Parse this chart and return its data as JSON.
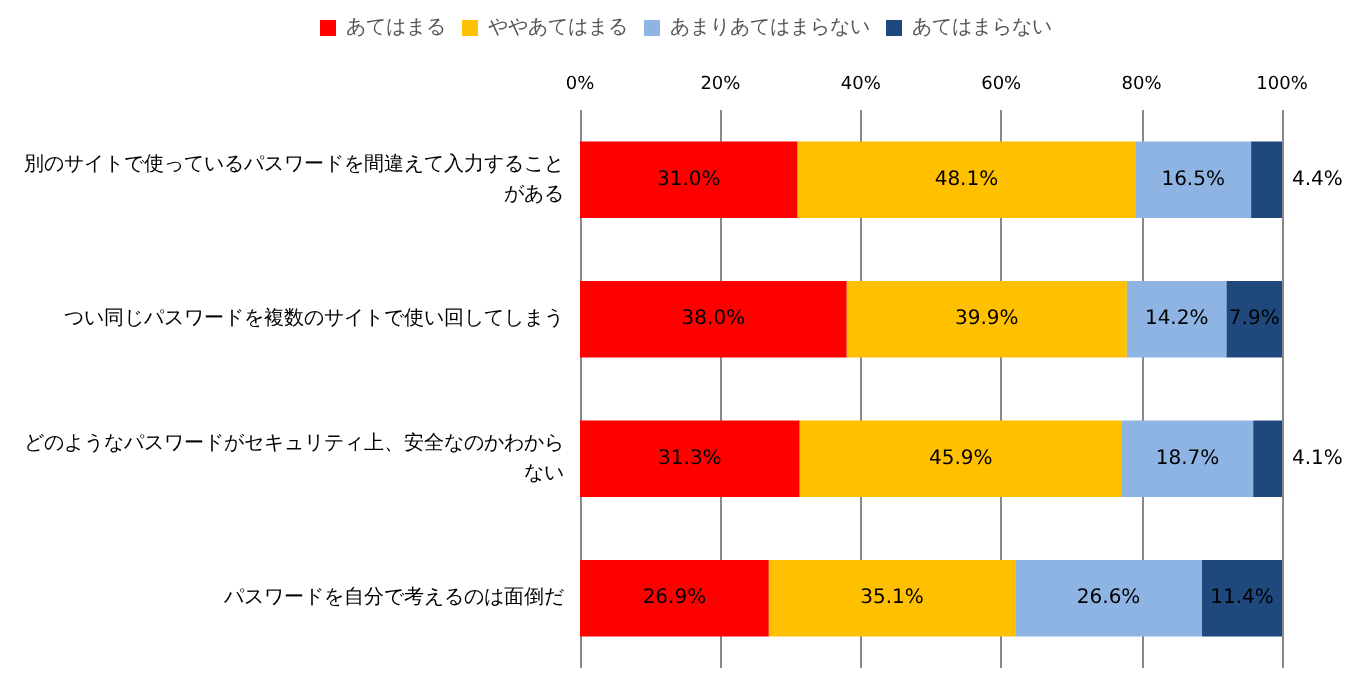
{
  "chart_data": {
    "type": "bar",
    "orientation": "horizontal",
    "stacked": true,
    "categories": [
      "別のサイトで使っているパスワードを間違えて入力することがある",
      "つい同じパスワードを複数のサイトで使い回してしまう",
      "どのようなパスワードがセキュリティ上、安全なのかわからない",
      "パスワードを自分で考えるのは面倒だ"
    ],
    "series": [
      {
        "name": "あてはまる",
        "color": "#ff0000",
        "values": [
          31.0,
          38.0,
          31.3,
          26.9
        ],
        "value_labels": [
          "31.0%",
          "38.0%",
          "31.3%",
          "26.9%"
        ]
      },
      {
        "name": "ややあてはまる",
        "color": "#ffc000",
        "values": [
          48.1,
          39.9,
          45.9,
          35.1
        ],
        "value_labels": [
          "48.1%",
          "39.9%",
          "45.9%",
          "35.1%"
        ]
      },
      {
        "name": "あまりあてはまらない",
        "color": "#8eb4e3",
        "values": [
          16.5,
          14.2,
          18.7,
          26.6
        ],
        "value_labels": [
          "16.5%",
          "14.2%",
          "18.7%",
          "26.6%"
        ]
      },
      {
        "name": "あてはまらない",
        "color": "#1f497d",
        "values": [
          4.4,
          7.9,
          4.1,
          11.4
        ],
        "value_labels": [
          "4.4%",
          "7.9%",
          "4.1%",
          "11.4%"
        ]
      }
    ],
    "xlim": [
      0,
      100
    ],
    "xticks": [
      {
        "value": 0,
        "label": "0%"
      },
      {
        "value": 20,
        "label": "20%"
      },
      {
        "value": 40,
        "label": "40%"
      },
      {
        "value": 60,
        "label": "60%"
      },
      {
        "value": 80,
        "label": "80%"
      },
      {
        "value": 100,
        "label": "100%"
      }
    ],
    "grid": "x",
    "legend": "top"
  }
}
